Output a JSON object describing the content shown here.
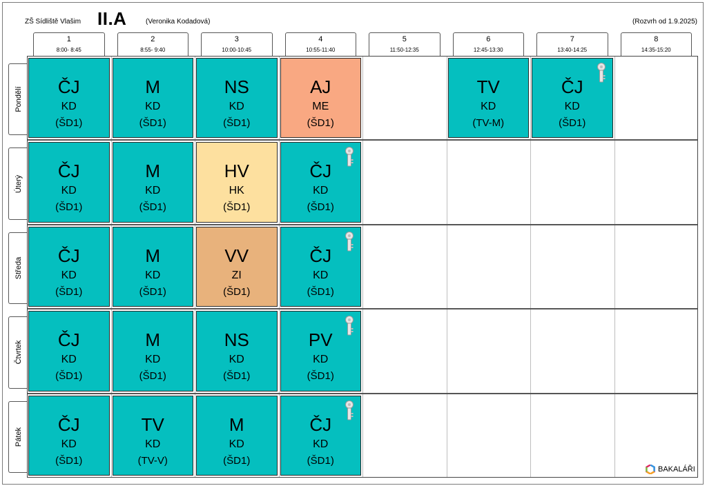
{
  "header": {
    "school": "ZŠ Sídliště Vlašim",
    "class": "II.A",
    "teacher": "(Veronika Kodadová)",
    "validity": "(Rozvrh od 1.9.2025)"
  },
  "periods": [
    {
      "num": "1",
      "time": "8:00- 8:45"
    },
    {
      "num": "2",
      "time": "8:55- 9:40"
    },
    {
      "num": "3",
      "time": "10:00-10:45"
    },
    {
      "num": "4",
      "time": "10:55-11:40"
    },
    {
      "num": "5",
      "time": "11:50-12:35"
    },
    {
      "num": "6",
      "time": "12:45-13:30"
    },
    {
      "num": "7",
      "time": "13:40-14:25"
    },
    {
      "num": "8",
      "time": "14:35-15:20"
    }
  ],
  "days": [
    "Pondělí",
    "Úterý",
    "Středa",
    "Čtvrtek",
    "Pátek"
  ],
  "lessons": [
    [
      {
        "s": "ČJ",
        "t": "KD",
        "r": "(ŠD1)",
        "c": "#05bfbf"
      },
      {
        "s": "M",
        "t": "KD",
        "r": "(ŠD1)",
        "c": "#05bfbf"
      },
      {
        "s": "NS",
        "t": "KD",
        "r": "(ŠD1)",
        "c": "#05bfbf"
      },
      {
        "s": "AJ",
        "t": "ME",
        "r": "(ŠD1)",
        "c": "#f9a882"
      },
      null,
      {
        "s": "TV",
        "t": "KD",
        "r": "(TV-M)",
        "c": "#05bfbf"
      },
      {
        "s": "ČJ",
        "t": "KD",
        "r": "(ŠD1)",
        "c": "#05bfbf",
        "key": true
      },
      null
    ],
    [
      {
        "s": "ČJ",
        "t": "KD",
        "r": "(ŠD1)",
        "c": "#05bfbf"
      },
      {
        "s": "M",
        "t": "KD",
        "r": "(ŠD1)",
        "c": "#05bfbf"
      },
      {
        "s": "HV",
        "t": "HK",
        "r": "(ŠD1)",
        "c": "#fde09f"
      },
      {
        "s": "ČJ",
        "t": "KD",
        "r": "(ŠD1)",
        "c": "#05bfbf",
        "key": true
      },
      null,
      null,
      null,
      null
    ],
    [
      {
        "s": "ČJ",
        "t": "KD",
        "r": "(ŠD1)",
        "c": "#05bfbf"
      },
      {
        "s": "M",
        "t": "KD",
        "r": "(ŠD1)",
        "c": "#05bfbf"
      },
      {
        "s": "VV",
        "t": "ZI",
        "r": "(ŠD1)",
        "c": "#e8b27c"
      },
      {
        "s": "ČJ",
        "t": "KD",
        "r": "(ŠD1)",
        "c": "#05bfbf",
        "key": true
      },
      null,
      null,
      null,
      null
    ],
    [
      {
        "s": "ČJ",
        "t": "KD",
        "r": "(ŠD1)",
        "c": "#05bfbf"
      },
      {
        "s": "M",
        "t": "KD",
        "r": "(ŠD1)",
        "c": "#05bfbf"
      },
      {
        "s": "NS",
        "t": "KD",
        "r": "(ŠD1)",
        "c": "#05bfbf"
      },
      {
        "s": "PV",
        "t": "KD",
        "r": "(ŠD1)",
        "c": "#05bfbf",
        "key": true
      },
      null,
      null,
      null,
      null
    ],
    [
      {
        "s": "ČJ",
        "t": "KD",
        "r": "(ŠD1)",
        "c": "#05bfbf"
      },
      {
        "s": "TV",
        "t": "KD",
        "r": "(TV-V)",
        "c": "#05bfbf"
      },
      {
        "s": "M",
        "t": "KD",
        "r": "(ŠD1)",
        "c": "#05bfbf"
      },
      {
        "s": "ČJ",
        "t": "KD",
        "r": "(ŠD1)",
        "c": "#05bfbf",
        "key": true
      },
      null,
      null,
      null,
      null
    ]
  ],
  "logo": {
    "text": "BAKALÁŘI",
    "icon": "bakalari-logo-icon"
  }
}
